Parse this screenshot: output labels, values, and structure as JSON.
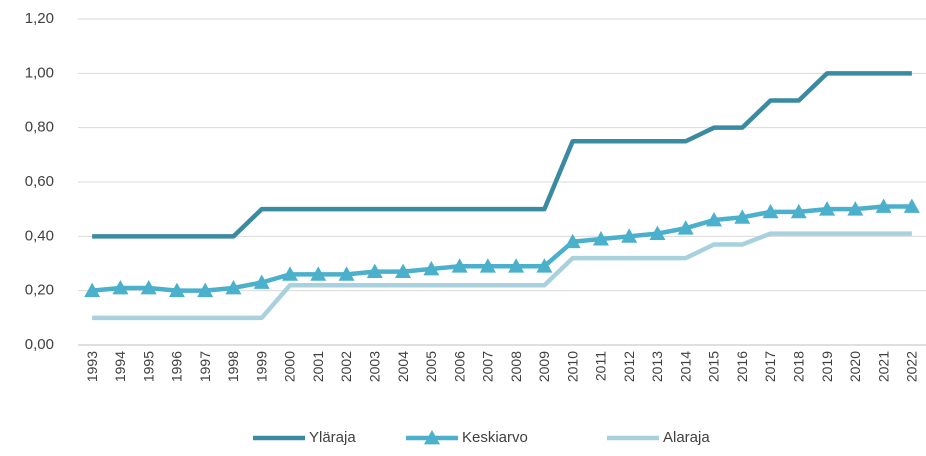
{
  "chart_data": {
    "type": "line",
    "categories": [
      "1993",
      "1994",
      "1995",
      "1996",
      "1997",
      "1998",
      "1999",
      "2000",
      "2001",
      "2002",
      "2003",
      "2004",
      "2005",
      "2006",
      "2007",
      "2008",
      "2009",
      "2010",
      "2011",
      "2012",
      "2013",
      "2014",
      "2015",
      "2016",
      "2017",
      "2018",
      "2019",
      "2020",
      "2021",
      "2022"
    ],
    "series": [
      {
        "name": "Yläraja",
        "color": "#3a8ba1",
        "marker": "none",
        "values": [
          0.4,
          0.4,
          0.4,
          0.4,
          0.4,
          0.4,
          0.5,
          0.5,
          0.5,
          0.5,
          0.5,
          0.5,
          0.5,
          0.5,
          0.5,
          0.5,
          0.5,
          0.75,
          0.75,
          0.75,
          0.75,
          0.75,
          0.8,
          0.8,
          0.9,
          0.9,
          1.0,
          1.0,
          1.0,
          1.0
        ]
      },
      {
        "name": "Keskiarvo",
        "color": "#4bb0cc",
        "marker": "triangle",
        "values": [
          0.2,
          0.21,
          0.21,
          0.2,
          0.2,
          0.21,
          0.23,
          0.26,
          0.26,
          0.26,
          0.27,
          0.27,
          0.28,
          0.29,
          0.29,
          0.29,
          0.29,
          0.38,
          0.39,
          0.4,
          0.41,
          0.43,
          0.46,
          0.47,
          0.49,
          0.49,
          0.5,
          0.5,
          0.51,
          0.51
        ]
      },
      {
        "name": "Alaraja",
        "color": "#a9d1dd",
        "marker": "none",
        "values": [
          0.1,
          0.1,
          0.1,
          0.1,
          0.1,
          0.1,
          0.1,
          0.22,
          0.22,
          0.22,
          0.22,
          0.22,
          0.22,
          0.22,
          0.22,
          0.22,
          0.22,
          0.32,
          0.32,
          0.32,
          0.32,
          0.32,
          0.37,
          0.37,
          0.41,
          0.41,
          0.41,
          0.41,
          0.41,
          0.41
        ]
      }
    ],
    "ylim": [
      0,
      1.2
    ],
    "yticks": [
      {
        "value": 0,
        "label": "0,00"
      },
      {
        "value": 0.2,
        "label": "0,20"
      },
      {
        "value": 0.4,
        "label": "0,40"
      },
      {
        "value": 0.6,
        "label": "0,60"
      },
      {
        "value": 0.8,
        "label": "0,80"
      },
      {
        "value": 1,
        "label": "1,00"
      },
      {
        "value": 1.2,
        "label": "1,20"
      }
    ],
    "grid": true,
    "legend": "bottom"
  }
}
